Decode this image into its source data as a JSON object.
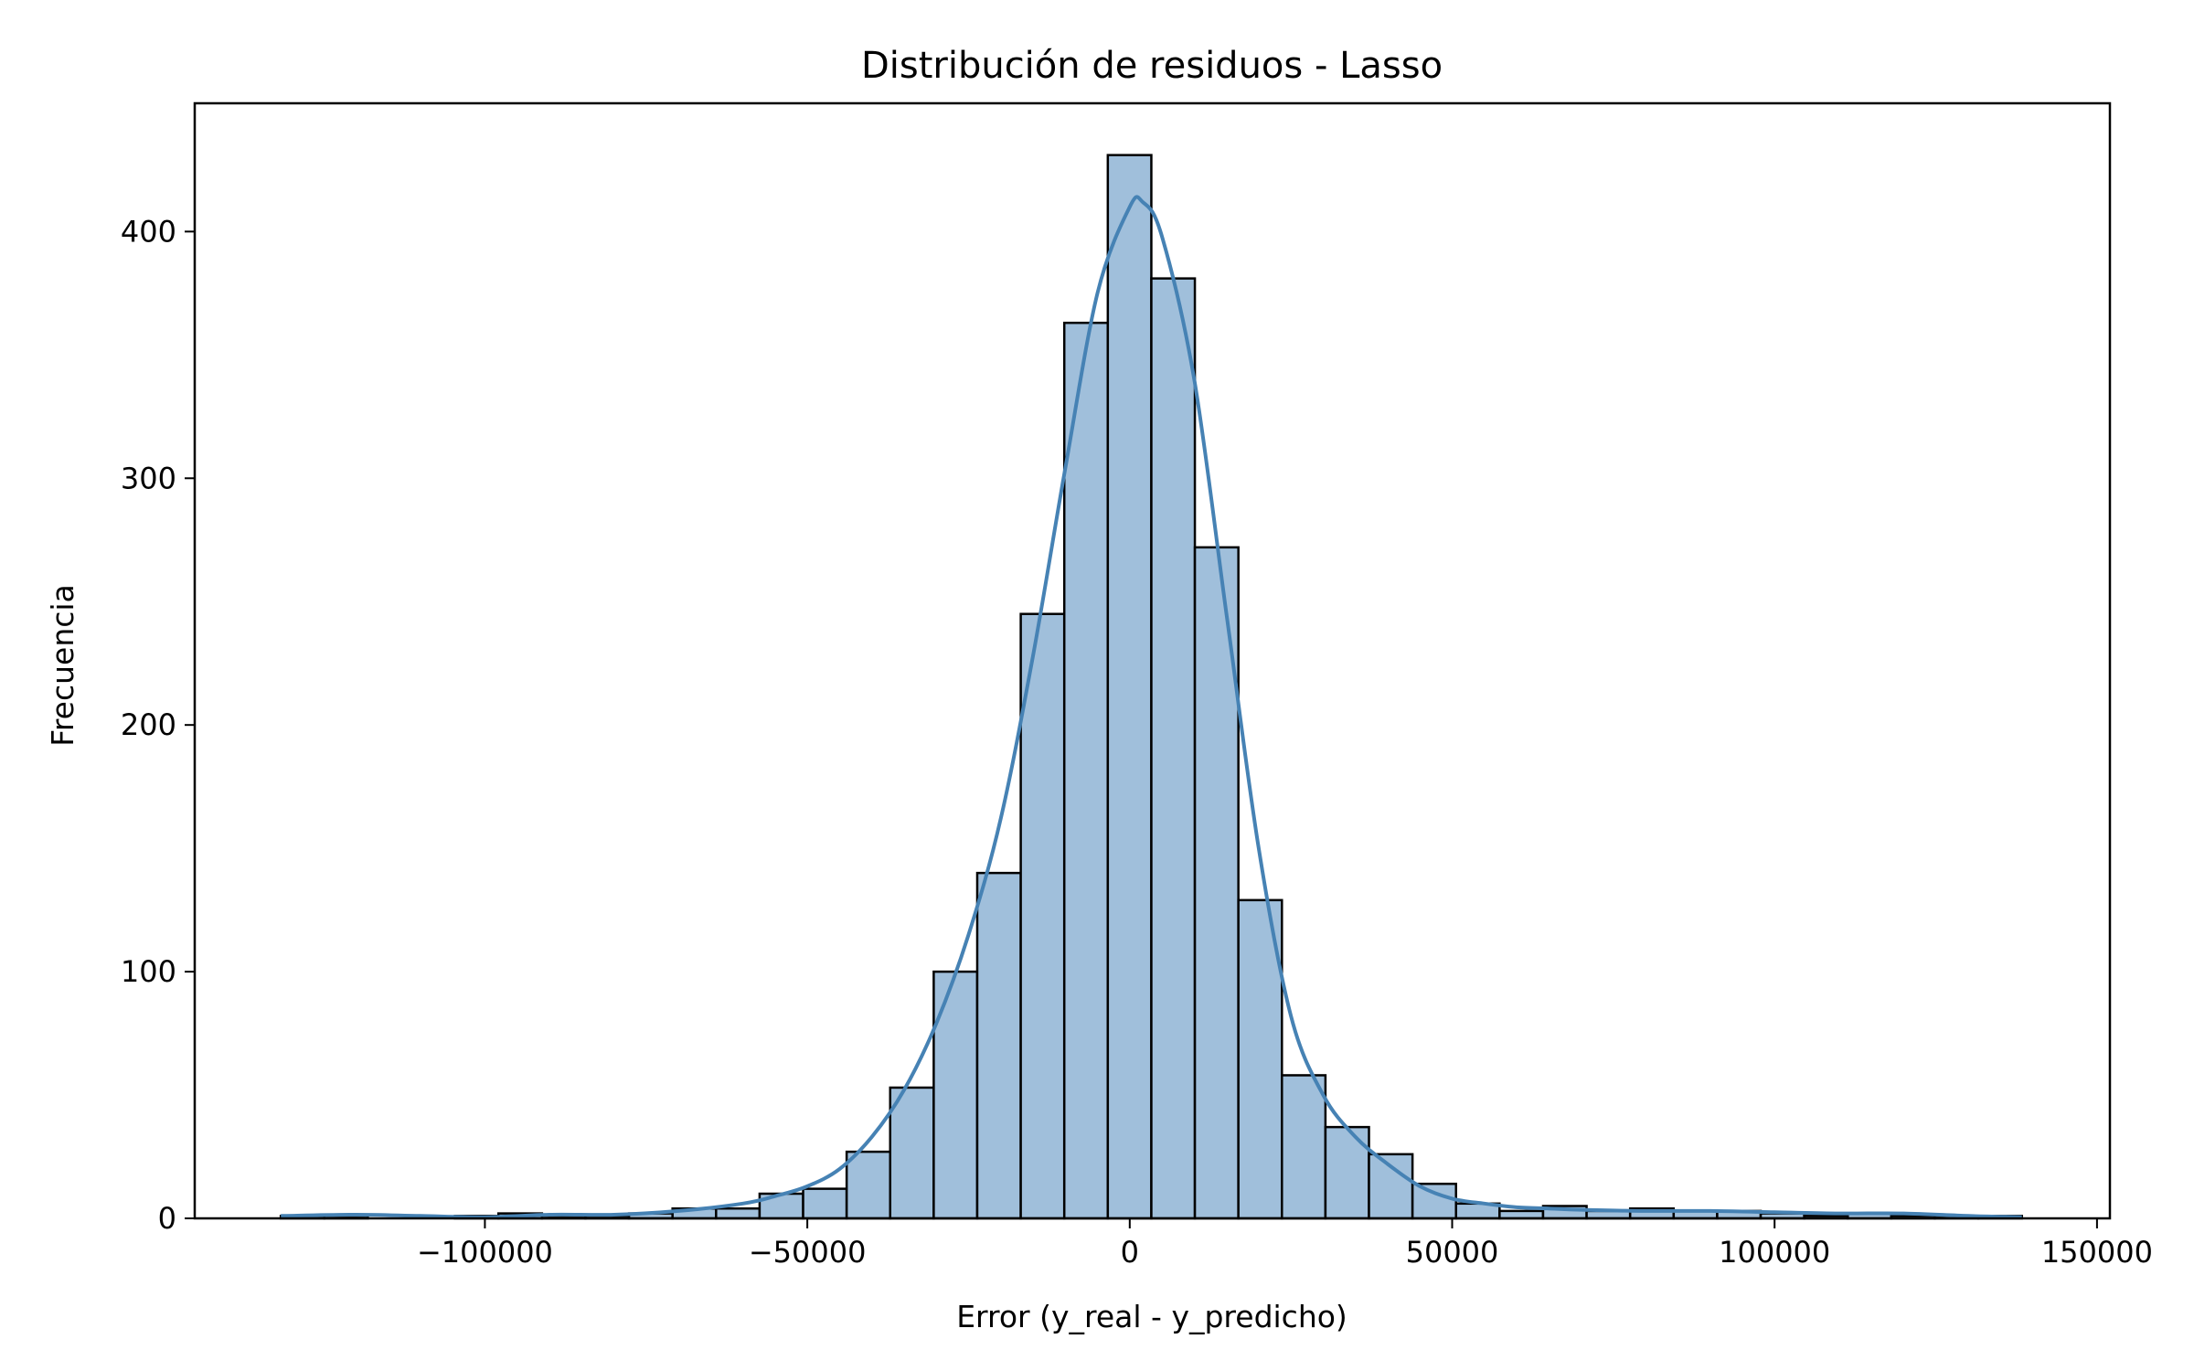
{
  "chart_data": {
    "type": "histogram",
    "title": "Distribución de residuos - Lasso",
    "xlabel": "Error (y_real - y_predicho)",
    "ylabel": "Frecuencia",
    "xlim": [
      -145000,
      152000
    ],
    "ylim": [
      0,
      452
    ],
    "xticks": [
      -100000,
      -50000,
      0,
      50000,
      100000,
      150000
    ],
    "xtick_labels": [
      "−100000",
      "−50000",
      "0",
      "50000",
      "100000",
      "150000"
    ],
    "yticks": [
      0,
      100,
      200,
      300,
      400
    ],
    "ytick_labels": [
      "0",
      "100",
      "200",
      "300",
      "400"
    ],
    "grid": false,
    "bin_start": -131650,
    "bin_width": 6750,
    "counts": [
      1,
      1,
      0,
      0,
      1,
      2,
      1,
      1,
      2,
      4,
      4,
      10,
      12,
      27,
      53,
      100,
      140,
      245,
      363,
      431,
      381,
      272,
      129,
      58,
      37,
      26,
      14,
      6,
      3,
      5,
      3,
      4,
      3,
      3,
      2,
      1,
      2,
      1,
      1,
      1
    ],
    "kde": {
      "x": [
        -131650,
        -120000,
        -110000,
        -100000,
        -90000,
        -80000,
        -70000,
        -60000,
        -55000,
        -50000,
        -45000,
        -40000,
        -35000,
        -30000,
        -25000,
        -20000,
        -15000,
        -10000,
        -5000,
        0,
        2000,
        5000,
        10000,
        15000,
        20000,
        25000,
        30000,
        35000,
        40000,
        45000,
        50000,
        55000,
        60000,
        65000,
        70000,
        80000,
        90000,
        100000,
        110000,
        120000,
        130000,
        138350
      ],
      "y": [
        1,
        1.5,
        1,
        0.5,
        1.5,
        1.5,
        3,
        6,
        9,
        13,
        20,
        33,
        52,
        79,
        115,
        162,
        228,
        304,
        375,
        410,
        412,
        398,
        340,
        245,
        150,
        82,
        50,
        33,
        22,
        13,
        8,
        6,
        4.5,
        4,
        3.5,
        3,
        3,
        2.5,
        2,
        2,
        1,
        0.5
      ]
    },
    "colors": {
      "bar_fill": "#a0bfdb",
      "bar_edge": "#000000",
      "kde_line": "#4682b4"
    }
  }
}
